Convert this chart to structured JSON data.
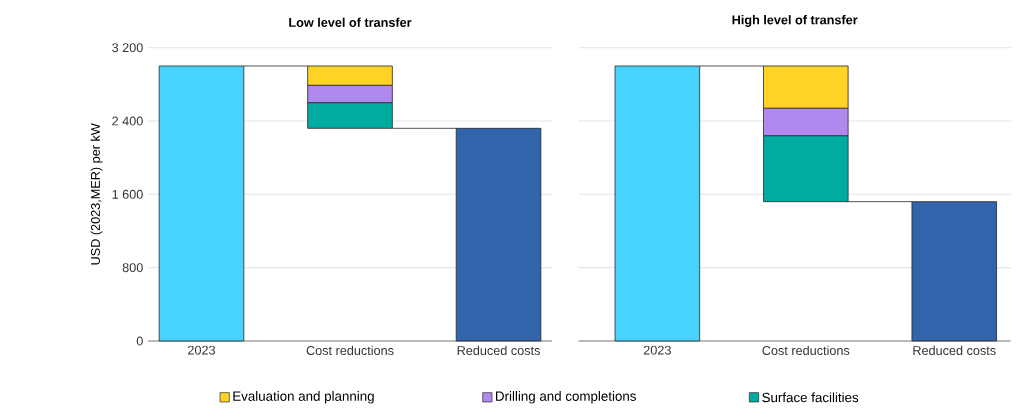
{
  "chart_data": [
    {
      "type": "bar",
      "title": "Low level of transfer",
      "ylabel": "USD (2023,MER) per kW",
      "categories": [
        "2023",
        "Cost reductions",
        "Reduced costs"
      ],
      "series": [
        {
          "colors": [
            "#48d3fe",
            null,
            "#3264ab"
          ],
          "values": [
            3000,
            null,
            2320
          ]
        },
        {
          "name": "Surface facilities",
          "color": "#00ac9f",
          "values": [
            null,
            280,
            null
          ],
          "base": [
            null,
            2320,
            null
          ]
        },
        {
          "name": "Drilling and completions",
          "color": "#b088ee",
          "values": [
            null,
            190,
            null
          ],
          "base": [
            null,
            2600,
            null
          ]
        },
        {
          "name": "Evaluation and planning",
          "color": "#fed325",
          "values": [
            null,
            210,
            null
          ],
          "base": [
            null,
            2790,
            null
          ]
        }
      ],
      "ylim": [
        0,
        3200
      ],
      "yticks": [
        0,
        800,
        {
          "value": 1600,
          "label": "1 600"
        },
        {
          "value": 2400,
          "label": "2 400"
        },
        {
          "value": 3200,
          "label": "3 200"
        }
      ],
      "grid": "y",
      "legend": "bottom"
    },
    {
      "type": "bar",
      "title": "High level of transfer",
      "categories": [
        "2023",
        "Cost reductions",
        "Reduced costs"
      ],
      "series": [
        {
          "colors": [
            "#48d3fe",
            null,
            "#3264ab"
          ],
          "values": [
            3000,
            null,
            1520
          ]
        },
        {
          "color": "#00ac9f",
          "values": [
            null,
            720,
            null
          ],
          "base": [
            null,
            1520,
            null
          ]
        },
        {
          "color": "#b088ee",
          "values": [
            null,
            300,
            null
          ],
          "base": [
            null,
            2240,
            null
          ]
        },
        {
          "color": "#fed325",
          "values": [
            null,
            460,
            null
          ],
          "base": [
            null,
            2540,
            null
          ]
        }
      ],
      "ylim": [
        0,
        3200
      ],
      "yticks": [
        0,
        800,
        1600,
        2400,
        3200
      ],
      "grid": "y",
      "tick_labels": "x"
    }
  ]
}
